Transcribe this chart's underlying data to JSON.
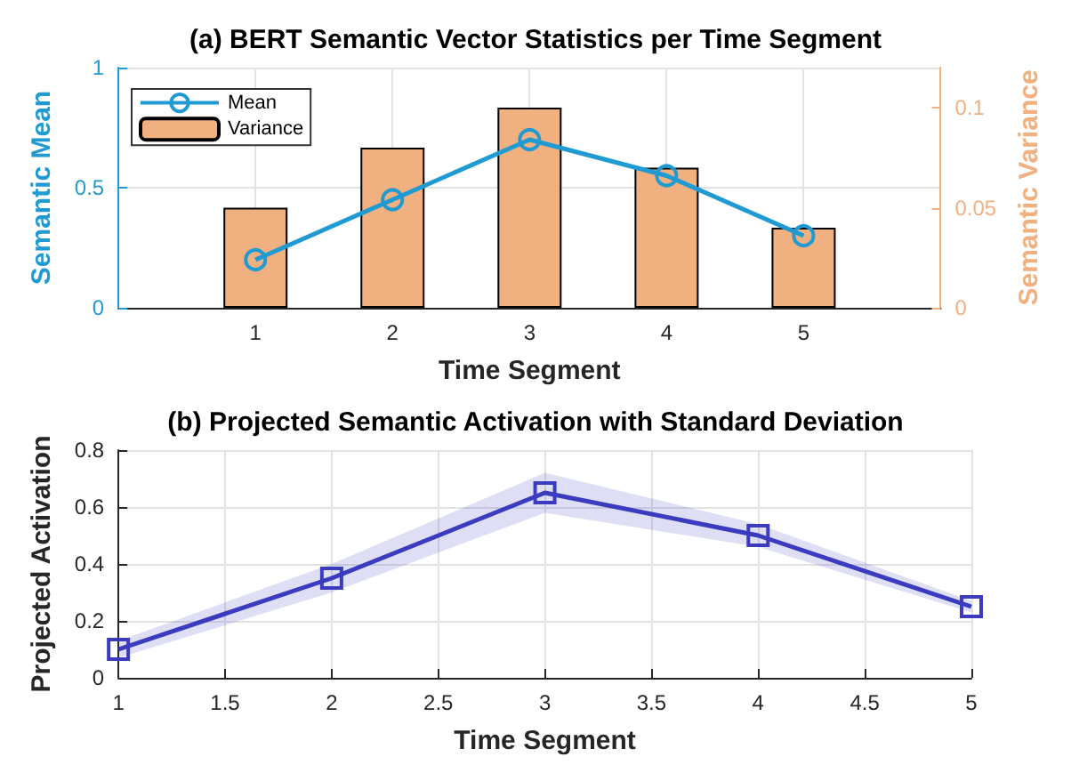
{
  "chart_data": [
    {
      "type": "bar",
      "title": "(a) BERT Semantic Vector Statistics per Time Segment",
      "xlabel": "Time Segment",
      "ylabel": "Semantic Mean",
      "y2label": "Semantic Variance",
      "x": [
        1,
        2,
        3,
        4,
        5
      ],
      "xlim": [
        0,
        6
      ],
      "xticks": [
        1,
        2,
        3,
        4,
        5
      ],
      "ylim": [
        0,
        1
      ],
      "yticks": [
        0,
        0.5,
        1
      ],
      "y2lim": [
        0,
        0.12
      ],
      "y2ticks": [
        0,
        0.05,
        0.1
      ],
      "grid": true,
      "legend": "top left",
      "marker": "circle",
      "series": [
        {
          "name": "Mean",
          "type": "line",
          "color": "#1f9ad3",
          "values": [
            0.2,
            0.45,
            0.7,
            0.55,
            0.3
          ]
        },
        {
          "name": "Variance",
          "axis": "y2",
          "color": "#f0b080",
          "values": [
            0.05,
            0.08,
            0.1,
            0.07,
            0.04
          ]
        }
      ]
    },
    {
      "type": "line",
      "title": "(b) Projected Semantic Activation with Standard Deviation",
      "xlabel": "Time Segment",
      "ylabel": "Projected Activation",
      "x": [
        1,
        2,
        3,
        4,
        5
      ],
      "xlim": [
        1,
        5
      ],
      "xticks": [
        1,
        1.5,
        2,
        2.5,
        3,
        3.5,
        4,
        4.5,
        5
      ],
      "ylim": [
        0,
        0.8
      ],
      "yticks": [
        0,
        0.2,
        0.4,
        0.6,
        0.8
      ],
      "grid": true,
      "marker": "square",
      "series": [
        {
          "color": "#3b3bbf",
          "values": [
            0.1,
            0.35,
            0.65,
            0.5,
            0.25
          ],
          "lower": [
            0.07,
            0.3,
            0.58,
            0.46,
            0.23
          ],
          "upper": [
            0.13,
            0.4,
            0.72,
            0.54,
            0.27
          ]
        }
      ]
    }
  ]
}
